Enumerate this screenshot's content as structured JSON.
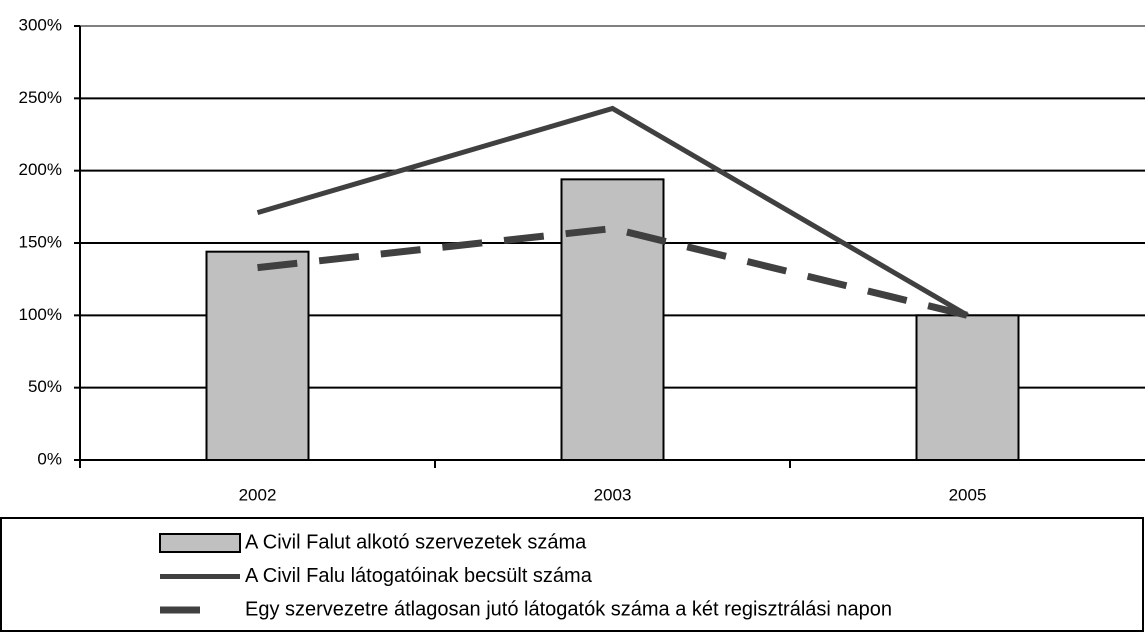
{
  "chart_data": {
    "type": "bar-line",
    "categories": [
      "2002",
      "2003",
      "2005"
    ],
    "series": [
      {
        "name": "A Civil Falut alkotó szervezetek száma",
        "type": "bar",
        "color": "#c0c0c0",
        "values": [
          144,
          194,
          100
        ]
      },
      {
        "name": "A Civil Falu látogatóinak becsült száma",
        "type": "line",
        "color": "#404040",
        "values": [
          171,
          243,
          100
        ]
      },
      {
        "name": "Egy szervezetre átlagosan jutó látogatók száma a két regisztrálási napon",
        "type": "dashed-line",
        "color": "#404040",
        "values": [
          133,
          160,
          100
        ]
      }
    ],
    "ylim": [
      0,
      300
    ],
    "yticks": [
      {
        "value": 0,
        "label": "0%"
      },
      {
        "value": 50,
        "label": "50%"
      },
      {
        "value": 100,
        "label": "100%"
      },
      {
        "value": 150,
        "label": "150%"
      },
      {
        "value": 200,
        "label": "200%"
      },
      {
        "value": 250,
        "label": "250%"
      },
      {
        "value": 300,
        "label": "300%"
      }
    ],
    "grid": true,
    "legend": "bottom"
  }
}
